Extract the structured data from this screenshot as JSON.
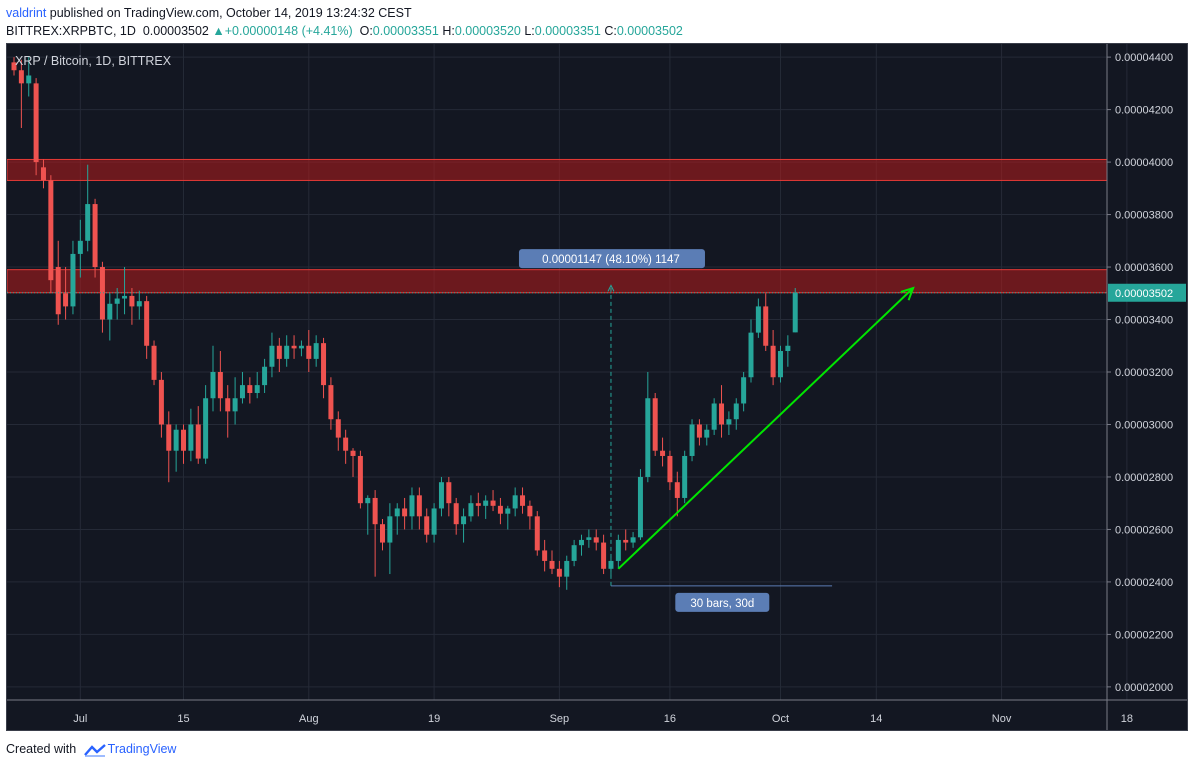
{
  "header": {
    "author": "valdrint",
    "published_text": "published on TradingView.com, October 14, 2019 13:24:32 CEST",
    "symbol": "BITTREX:XRPBTC, 1D",
    "last": "0.00003502",
    "change_text": "+0.00000148 (+4.41%)",
    "o_label": "O:",
    "o_value": "0.00003351",
    "h_label": "H:",
    "h_value": "0.00003520",
    "l_label": "L:",
    "l_value": "0.00003351",
    "c_label": "C:",
    "c_value": "0.00003502"
  },
  "footer": {
    "created_with": "Created with",
    "brand": "TradingView"
  },
  "colors": {
    "background": "#131722",
    "up": "#26a69a",
    "down": "#ef5350",
    "zone": "#b71c1c",
    "arrow": "#00e600",
    "label_bg": "#5b7db5"
  },
  "chart_data": {
    "type": "candlestick",
    "title": "XRP / Bitcoin, 1D, BITTREX",
    "x_tick_labels": [
      "Jul",
      "15",
      "Aug",
      "19",
      "Sep",
      "16",
      "Oct",
      "Nov",
      "18",
      "14"
    ],
    "y_tick_labels": [
      "0.00004400",
      "0.00004200",
      "0.00004000",
      "0.00003800",
      "0.00003600",
      "0.00003400",
      "0.00003200",
      "0.00003000",
      "0.00002800",
      "0.00002600",
      "0.00002400",
      "0.00002200",
      "0.00002000"
    ],
    "ylim": [
      1.95e-05,
      4.45e-05
    ],
    "last_price_label": "0.00003502",
    "resistance_zones": [
      {
        "low": 3.93e-05,
        "high": 4.01e-05
      },
      {
        "low": 3.502e-05,
        "high": 3.59e-05
      }
    ],
    "measure_label": "0.00001147 (48.10%) 1147",
    "range_label": "30 bars, 30d",
    "candles": [
      [
        4.38e-05,
        4.4e-05,
        4.33e-05,
        4.35e-05
      ],
      [
        4.35e-05,
        4.39e-05,
        4.13e-05,
        4.3e-05
      ],
      [
        4.3e-05,
        4.4e-05,
        4.25e-05,
        4.33e-05
      ],
      [
        4.3e-05,
        4.32e-05,
        3.95e-05,
        4e-05
      ],
      [
        3.98e-05,
        4.01e-05,
        3.9e-05,
        3.93e-05
      ],
      [
        3.93e-05,
        3.95e-05,
        3.5e-05,
        3.55e-05
      ],
      [
        3.6e-05,
        3.7e-05,
        3.38e-05,
        3.42e-05
      ],
      [
        3.5e-05,
        3.6e-05,
        3.4e-05,
        3.45e-05
      ],
      [
        3.45e-05,
        3.7e-05,
        3.42e-05,
        3.65e-05
      ],
      [
        3.65e-05,
        3.78e-05,
        3.56e-05,
        3.7e-05
      ],
      [
        3.7e-05,
        3.99e-05,
        3.66e-05,
        3.84e-05
      ],
      [
        3.84e-05,
        3.86e-05,
        3.56e-05,
        3.6e-05
      ],
      [
        3.6e-05,
        3.62e-05,
        3.35e-05,
        3.4e-05
      ],
      [
        3.4e-05,
        3.5e-05,
        3.32e-05,
        3.46e-05
      ],
      [
        3.46e-05,
        3.52e-05,
        3.4e-05,
        3.48e-05
      ],
      [
        3.48e-05,
        3.6e-05,
        3.42e-05,
        3.49e-05
      ],
      [
        3.49e-05,
        3.52e-05,
        3.38e-05,
        3.45e-05
      ],
      [
        3.45e-05,
        3.51e-05,
        3.4e-05,
        3.47e-05
      ],
      [
        3.47e-05,
        3.49e-05,
        3.25e-05,
        3.3e-05
      ],
      [
        3.3e-05,
        3.32e-05,
        3.15e-05,
        3.17e-05
      ],
      [
        3.17e-05,
        3.2e-05,
        2.95e-05,
        3e-05
      ],
      [
        3e-05,
        3.05e-05,
        2.78e-05,
        2.9e-05
      ],
      [
        2.9e-05,
        3e-05,
        2.82e-05,
        2.98e-05
      ],
      [
        2.98e-05,
        3e-05,
        2.85e-05,
        2.9e-05
      ],
      [
        2.9e-05,
        3.06e-05,
        2.86e-05,
        3e-05
      ],
      [
        3e-05,
        3.07e-05,
        2.85e-05,
        2.87e-05
      ],
      [
        2.87e-05,
        3.15e-05,
        2.85e-05,
        3.1e-05
      ],
      [
        3.1e-05,
        3.3e-05,
        3.05e-05,
        3.2e-05
      ],
      [
        3.2e-05,
        3.28e-05,
        3.05e-05,
        3.1e-05
      ],
      [
        3.1e-05,
        3.15e-05,
        2.95e-05,
        3.05e-05
      ],
      [
        3.05e-05,
        3.18e-05,
        3e-05,
        3.1e-05
      ],
      [
        3.1e-05,
        3.2e-05,
        3.08e-05,
        3.15e-05
      ],
      [
        3.15e-05,
        3.18e-05,
        3.08e-05,
        3.12e-05
      ],
      [
        3.12e-05,
        3.2e-05,
        3.1e-05,
        3.15e-05
      ],
      [
        3.15e-05,
        3.25e-05,
        3.12e-05,
        3.22e-05
      ],
      [
        3.22e-05,
        3.35e-05,
        3.18e-05,
        3.3e-05
      ],
      [
        3.3e-05,
        3.33e-05,
        3.2e-05,
        3.25e-05
      ],
      [
        3.25e-05,
        3.34e-05,
        3.22e-05,
        3.3e-05
      ],
      [
        3.3e-05,
        3.34e-05,
        3.25e-05,
        3.29e-05
      ],
      [
        3.29e-05,
        3.32e-05,
        3.26e-05,
        3.3e-05
      ],
      [
        3.3e-05,
        3.36e-05,
        3.2e-05,
        3.25e-05
      ],
      [
        3.25e-05,
        3.34e-05,
        3.22e-05,
        3.31e-05
      ],
      [
        3.31e-05,
        3.33e-05,
        3.1e-05,
        3.15e-05
      ],
      [
        3.15e-05,
        3.18e-05,
        2.98e-05,
        3.02e-05
      ],
      [
        3.02e-05,
        3.05e-05,
        2.9e-05,
        2.95e-05
      ],
      [
        2.95e-05,
        2.98e-05,
        2.85e-05,
        2.9e-05
      ],
      [
        2.9e-05,
        2.91e-05,
        2.8e-05,
        2.88e-05
      ],
      [
        2.88e-05,
        2.9e-05,
        2.68e-05,
        2.7e-05
      ],
      [
        2.7e-05,
        2.73e-05,
        2.58e-05,
        2.72e-05
      ],
      [
        2.72e-05,
        2.75e-05,
        2.42e-05,
        2.62e-05
      ],
      [
        2.62e-05,
        2.64e-05,
        2.52e-05,
        2.55e-05
      ],
      [
        2.55e-05,
        2.7e-05,
        2.43e-05,
        2.65e-05
      ],
      [
        2.65e-05,
        2.7e-05,
        2.58e-05,
        2.68e-05
      ],
      [
        2.68e-05,
        2.72e-05,
        2.6e-05,
        2.65e-05
      ],
      [
        2.65e-05,
        2.76e-05,
        2.6e-05,
        2.73e-05
      ],
      [
        2.73e-05,
        2.76e-05,
        2.6e-05,
        2.65e-05
      ],
      [
        2.65e-05,
        2.68e-05,
        2.55e-05,
        2.58e-05
      ],
      [
        2.58e-05,
        2.7e-05,
        2.55e-05,
        2.68e-05
      ],
      [
        2.68e-05,
        2.8e-05,
        2.65e-05,
        2.78e-05
      ],
      [
        2.78e-05,
        2.8e-05,
        2.65e-05,
        2.7e-05
      ],
      [
        2.7e-05,
        2.72e-05,
        2.58e-05,
        2.62e-05
      ],
      [
        2.62e-05,
        2.68e-05,
        2.55e-05,
        2.65e-05
      ],
      [
        2.65e-05,
        2.73e-05,
        2.63e-05,
        2.7e-05
      ],
      [
        2.7e-05,
        2.74e-05,
        2.65e-05,
        2.69e-05
      ],
      [
        2.69e-05,
        2.73e-05,
        2.64e-05,
        2.71e-05
      ],
      [
        2.71e-05,
        2.75e-05,
        2.67e-05,
        2.69e-05
      ],
      [
        2.69e-05,
        2.72e-05,
        2.62e-05,
        2.66e-05
      ],
      [
        2.66e-05,
        2.69e-05,
        2.6e-05,
        2.68e-05
      ],
      [
        2.68e-05,
        2.76e-05,
        2.65e-05,
        2.73e-05
      ],
      [
        2.73e-05,
        2.76e-05,
        2.66e-05,
        2.69e-05
      ],
      [
        2.69e-05,
        2.71e-05,
        2.6e-05,
        2.65e-05
      ],
      [
        2.65e-05,
        2.67e-05,
        2.5e-05,
        2.52e-05
      ],
      [
        2.52e-05,
        2.56e-05,
        2.44e-05,
        2.48e-05
      ],
      [
        2.48e-05,
        2.52e-05,
        2.43e-05,
        2.45e-05
      ],
      [
        2.45e-05,
        2.48e-05,
        2.38e-05,
        2.42e-05
      ],
      [
        2.42e-05,
        2.5e-05,
        2.37e-05,
        2.48e-05
      ],
      [
        2.48e-05,
        2.56e-05,
        2.46e-05,
        2.54e-05
      ],
      [
        2.54e-05,
        2.58e-05,
        2.5e-05,
        2.56e-05
      ],
      [
        2.56e-05,
        2.6e-05,
        2.53e-05,
        2.57e-05
      ],
      [
        2.57e-05,
        2.6e-05,
        2.52e-05,
        2.55e-05
      ],
      [
        2.55e-05,
        2.58e-05,
        2.43e-05,
        2.45e-05
      ],
      [
        2.45e-05,
        2.5e-05,
        2.42e-05,
        2.48e-05
      ],
      [
        2.48e-05,
        2.58e-05,
        2.45e-05,
        2.56e-05
      ],
      [
        2.56e-05,
        2.6e-05,
        2.52e-05,
        2.55e-05
      ],
      [
        2.55e-05,
        2.59e-05,
        2.53e-05,
        2.57e-05
      ],
      [
        2.57e-05,
        2.83e-05,
        2.56e-05,
        2.8e-05
      ],
      [
        2.8e-05,
        3.2e-05,
        2.78e-05,
        3.1e-05
      ],
      [
        3.1e-05,
        3.12e-05,
        2.88e-05,
        2.9e-05
      ],
      [
        2.9e-05,
        2.95e-05,
        2.84e-05,
        2.88e-05
      ],
      [
        2.88e-05,
        2.9e-05,
        2.75e-05,
        2.78e-05
      ],
      [
        2.78e-05,
        2.82e-05,
        2.65e-05,
        2.72e-05
      ],
      [
        2.72e-05,
        2.9e-05,
        2.7e-05,
        2.88e-05
      ],
      [
        2.88e-05,
        3.02e-05,
        2.86e-05,
        3e-05
      ],
      [
        3e-05,
        3.02e-05,
        2.92e-05,
        2.95e-05
      ],
      [
        2.95e-05,
        3e-05,
        2.92e-05,
        2.98e-05
      ],
      [
        2.98e-05,
        3.1e-05,
        2.96e-05,
        3.08e-05
      ],
      [
        3.08e-05,
        3.15e-05,
        2.95e-05,
        3e-05
      ],
      [
        3e-05,
        3.05e-05,
        2.96e-05,
        3.02e-05
      ],
      [
        3.02e-05,
        3.1e-05,
        2.98e-05,
        3.08e-05
      ],
      [
        3.08e-05,
        3.2e-05,
        3.05e-05,
        3.18e-05
      ],
      [
        3.18e-05,
        3.4e-05,
        3.16e-05,
        3.35e-05
      ],
      [
        3.35e-05,
        3.48e-05,
        3.33e-05,
        3.45e-05
      ],
      [
        3.45e-05,
        3.5e-05,
        3.28e-05,
        3.3e-05
      ],
      [
        3.3e-05,
        3.36e-05,
        3.15e-05,
        3.18e-05
      ],
      [
        3.18e-05,
        3.3e-05,
        3.16e-05,
        3.28e-05
      ],
      [
        3.28e-05,
        3.34e-05,
        3.22e-05,
        3.3e-05
      ],
      [
        3.351e-05,
        3.52e-05,
        3.351e-05,
        3.502e-05
      ]
    ]
  }
}
